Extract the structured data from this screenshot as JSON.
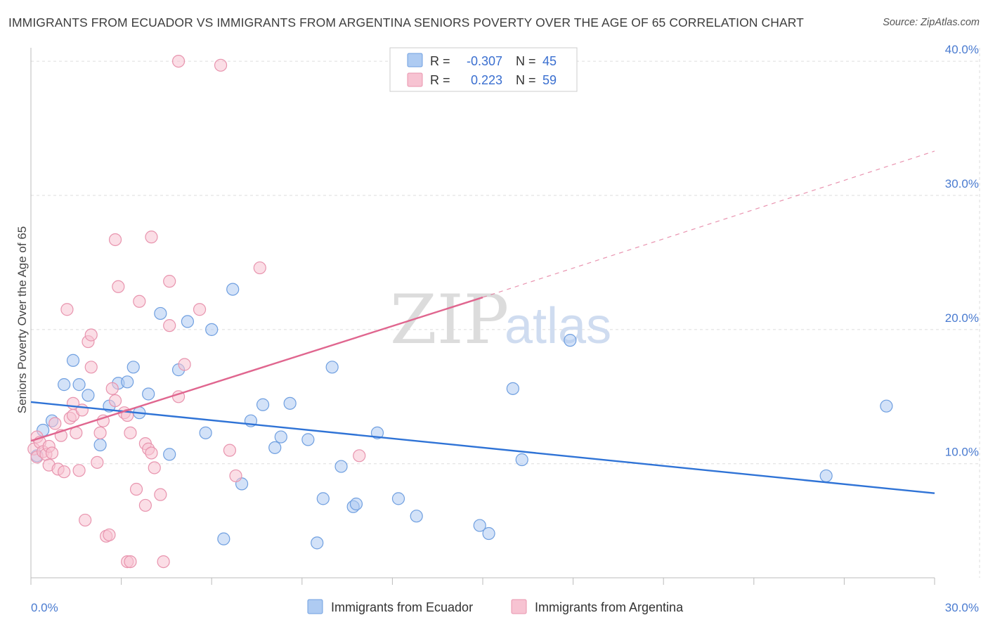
{
  "title": "IMMIGRANTS FROM ECUADOR VS IMMIGRANTS FROM ARGENTINA SENIORS POVERTY OVER THE AGE OF 65 CORRELATION CHART",
  "source": "Source: ZipAtlas.com",
  "watermark": {
    "zip": "ZIP",
    "atlas": "atlas"
  },
  "colors": {
    "ecuador_fill": "#aecbf2",
    "ecuador_stroke": "#6f9fe0",
    "ecuador_line": "#2f73d6",
    "argentina_fill": "#f7c3d2",
    "argentina_stroke": "#e894ae",
    "argentina_line": "#e0668f",
    "grid": "#dddddd",
    "axis_text": "#4a7bd0"
  },
  "legend": {
    "rows": [
      {
        "r_label": "R =",
        "r_value": "-0.307",
        "n_label": "N =",
        "n_value": "45"
      },
      {
        "r_label": "R =",
        "r_value": "0.223",
        "n_label": "N =",
        "n_value": "59"
      }
    ]
  },
  "chart_data": {
    "type": "scatter",
    "title": "IMMIGRANTS FROM ECUADOR VS IMMIGRANTS FROM ARGENTINA SENIORS POVERTY OVER THE AGE OF 65 CORRELATION CHART",
    "xlabel": "",
    "ylabel": "Seniors Poverty Over the Age of 65",
    "xlim": [
      0,
      30
    ],
    "ylim": [
      1.5,
      41
    ],
    "x_tick_labels": [
      "0.0%",
      "30.0%"
    ],
    "y_ticks": [
      10,
      20,
      30,
      40
    ],
    "y_tick_labels": [
      "10.0%",
      "20.0%",
      "30.0%",
      "40.0%"
    ],
    "grid": true,
    "series": [
      {
        "name": "Immigrants from Ecuador",
        "r": -0.307,
        "n": 45,
        "trend": {
          "x": [
            0,
            30
          ],
          "y": [
            14.6,
            7.8
          ],
          "dashed_to": null
        },
        "points": [
          [
            0.2,
            10.6
          ],
          [
            0.4,
            12.5
          ],
          [
            0.7,
            13.2
          ],
          [
            1.1,
            15.9
          ],
          [
            1.4,
            17.7
          ],
          [
            1.6,
            15.9
          ],
          [
            1.9,
            15.1
          ],
          [
            2.3,
            11.4
          ],
          [
            2.6,
            14.3
          ],
          [
            2.9,
            16.0
          ],
          [
            3.2,
            16.1
          ],
          [
            3.4,
            17.2
          ],
          [
            3.6,
            13.8
          ],
          [
            3.9,
            15.2
          ],
          [
            4.3,
            21.2
          ],
          [
            4.6,
            10.7
          ],
          [
            4.9,
            17.0
          ],
          [
            5.2,
            20.6
          ],
          [
            5.8,
            12.3
          ],
          [
            6.0,
            20.0
          ],
          [
            6.4,
            4.4
          ],
          [
            6.7,
            23.0
          ],
          [
            7.0,
            8.5
          ],
          [
            7.3,
            13.2
          ],
          [
            7.7,
            14.4
          ],
          [
            8.1,
            11.2
          ],
          [
            8.3,
            12.0
          ],
          [
            8.6,
            14.5
          ],
          [
            9.2,
            11.8
          ],
          [
            9.5,
            4.1
          ],
          [
            9.7,
            7.4
          ],
          [
            10.0,
            17.2
          ],
          [
            10.3,
            9.8
          ],
          [
            10.7,
            6.8
          ],
          [
            10.8,
            7.0
          ],
          [
            11.5,
            12.3
          ],
          [
            12.2,
            7.4
          ],
          [
            12.8,
            6.1
          ],
          [
            14.9,
            5.4
          ],
          [
            15.2,
            4.8
          ],
          [
            16.0,
            15.6
          ],
          [
            16.3,
            10.3
          ],
          [
            17.9,
            19.2
          ],
          [
            26.4,
            9.1
          ],
          [
            28.4,
            14.3
          ]
        ]
      },
      {
        "name": "Immigrants from Argentina",
        "r": 0.223,
        "n": 59,
        "trend": {
          "x": [
            0,
            15
          ],
          "y": [
            11.7,
            22.4
          ],
          "dashed_to": [
            30,
            33.3
          ]
        },
        "points": [
          [
            0.1,
            11.1
          ],
          [
            0.2,
            12.0
          ],
          [
            0.2,
            10.5
          ],
          [
            0.3,
            11.6
          ],
          [
            0.4,
            10.9
          ],
          [
            0.5,
            10.7
          ],
          [
            0.6,
            11.3
          ],
          [
            0.6,
            9.9
          ],
          [
            0.7,
            10.8
          ],
          [
            0.8,
            13.0
          ],
          [
            0.9,
            9.6
          ],
          [
            1.0,
            12.1
          ],
          [
            1.1,
            9.4
          ],
          [
            1.2,
            21.5
          ],
          [
            1.3,
            13.4
          ],
          [
            1.4,
            14.5
          ],
          [
            1.4,
            13.6
          ],
          [
            1.5,
            12.3
          ],
          [
            1.6,
            9.5
          ],
          [
            1.7,
            14.0
          ],
          [
            1.8,
            5.8
          ],
          [
            1.9,
            19.1
          ],
          [
            2.0,
            17.2
          ],
          [
            2.0,
            19.6
          ],
          [
            2.2,
            10.1
          ],
          [
            2.3,
            12.3
          ],
          [
            2.4,
            13.2
          ],
          [
            2.5,
            4.6
          ],
          [
            2.6,
            4.7
          ],
          [
            2.7,
            15.6
          ],
          [
            2.8,
            14.7
          ],
          [
            2.8,
            26.7
          ],
          [
            2.9,
            23.2
          ],
          [
            3.1,
            13.8
          ],
          [
            3.2,
            13.6
          ],
          [
            3.2,
            2.7
          ],
          [
            3.3,
            12.3
          ],
          [
            3.3,
            2.7
          ],
          [
            3.5,
            8.1
          ],
          [
            3.6,
            22.1
          ],
          [
            3.8,
            6.9
          ],
          [
            3.8,
            11.5
          ],
          [
            3.9,
            11.1
          ],
          [
            4.0,
            26.9
          ],
          [
            4.0,
            10.8
          ],
          [
            4.1,
            9.7
          ],
          [
            4.3,
            7.7
          ],
          [
            4.4,
            2.7
          ],
          [
            4.6,
            23.6
          ],
          [
            4.6,
            20.3
          ],
          [
            4.9,
            15.0
          ],
          [
            5.1,
            17.4
          ],
          [
            5.6,
            21.5
          ],
          [
            6.6,
            11.0
          ],
          [
            6.8,
            9.1
          ],
          [
            7.6,
            24.6
          ],
          [
            10.9,
            10.6
          ],
          [
            4.9,
            40.0
          ],
          [
            6.3,
            39.7
          ]
        ]
      }
    ]
  },
  "bottom_legend": [
    "Immigrants from Ecuador",
    "Immigrants from Argentina"
  ]
}
